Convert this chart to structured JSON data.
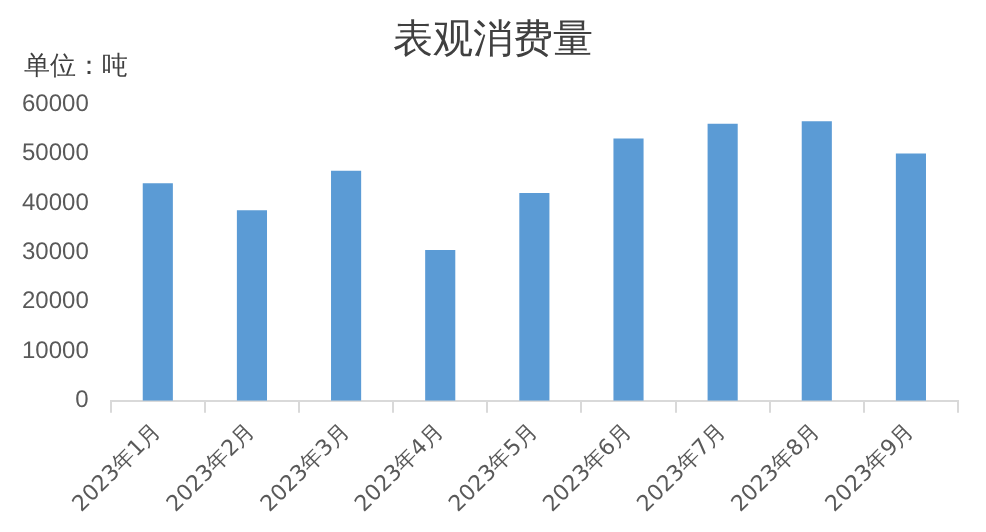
{
  "chart_data": {
    "type": "bar",
    "title": "表观消费量",
    "ylabel": "单位：吨",
    "categories": [
      "2023年1月",
      "2023年2月",
      "2023年3月",
      "2023年4月",
      "2023年5月",
      "2023年6月",
      "2023年7月",
      "2023年8月",
      "2023年9月"
    ],
    "values": [
      44000,
      38500,
      46500,
      30500,
      42000,
      53000,
      56000,
      56500,
      50000
    ],
    "color": "#5b9bd5",
    "ylim": [
      0,
      60000
    ],
    "yticks": [
      0,
      10000,
      20000,
      30000,
      40000,
      50000,
      60000
    ],
    "grid": false,
    "legend": false
  }
}
